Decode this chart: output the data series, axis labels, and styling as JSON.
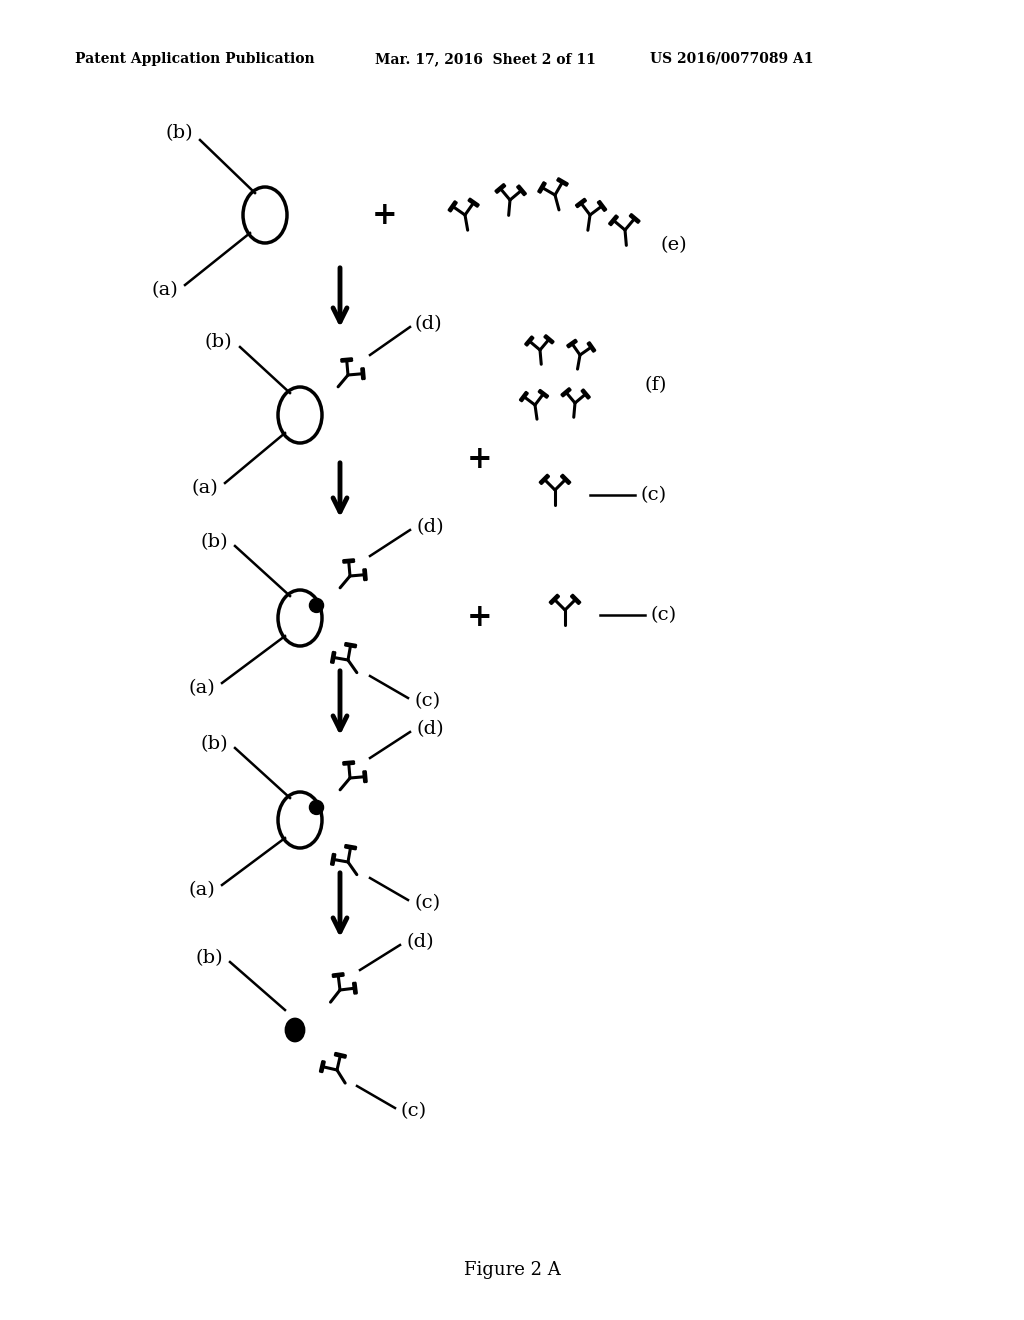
{
  "background_color": "#ffffff",
  "header_left": "Patent Application Publication",
  "header_mid": "Mar. 17, 2016  Sheet 2 of 11",
  "header_right": "US 2016/0077089 A1",
  "footer": "Figure 2 A",
  "fig_width": 10.24,
  "fig_height": 13.2,
  "dpi": 100
}
